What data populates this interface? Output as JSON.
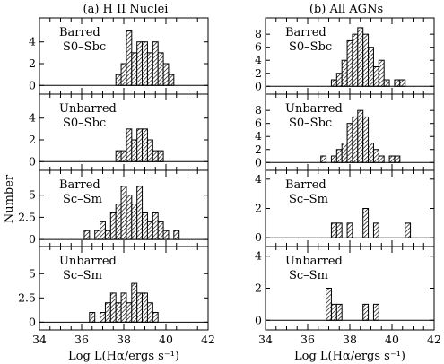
{
  "chart_data": [
    {
      "type": "bar",
      "title": "(a) H II Nuclei",
      "xlabel": "Log L(Hα/ergs s⁻¹)",
      "ylabel": "Number",
      "xlim": [
        34,
        42
      ],
      "bin_width": 0.25,
      "x_ticks": [
        "34",
        "36",
        "38",
        "40",
        "42"
      ],
      "panels": [
        {
          "label": [
            "Barred",
            "S0–Sbc"
          ],
          "ylim": [
            -0.8,
            6.2
          ],
          "y_ticks": [
            0,
            2,
            4
          ],
          "bins": [
            {
              "x": 37.75,
              "count": 1
            },
            {
              "x": 38.0,
              "count": 2
            },
            {
              "x": 38.25,
              "count": 5
            },
            {
              "x": 38.5,
              "count": 3
            },
            {
              "x": 38.75,
              "count": 4
            },
            {
              "x": 39.0,
              "count": 4
            },
            {
              "x": 39.25,
              "count": 3
            },
            {
              "x": 39.5,
              "count": 4
            },
            {
              "x": 39.75,
              "count": 3
            },
            {
              "x": 40.0,
              "count": 2
            },
            {
              "x": 40.25,
              "count": 1
            }
          ]
        },
        {
          "label": [
            "Unbarred",
            "S0–Sbc"
          ],
          "ylim": [
            -0.8,
            6.2
          ],
          "y_ticks": [
            0,
            2,
            4
          ],
          "bins": [
            {
              "x": 37.75,
              "count": 1
            },
            {
              "x": 38.0,
              "count": 1
            },
            {
              "x": 38.25,
              "count": 3
            },
            {
              "x": 38.5,
              "count": 2
            },
            {
              "x": 38.75,
              "count": 3
            },
            {
              "x": 39.0,
              "count": 3
            },
            {
              "x": 39.25,
              "count": 2
            },
            {
              "x": 39.5,
              "count": 1
            },
            {
              "x": 39.75,
              "count": 1
            }
          ]
        },
        {
          "label": [
            "Barred",
            "Sc–Sm"
          ],
          "ylim": [
            -0.8,
            7.8
          ],
          "y_ticks": [
            0,
            2.5,
            5
          ],
          "bins": [
            {
              "x": 36.25,
              "count": 1
            },
            {
              "x": 36.75,
              "count": 1
            },
            {
              "x": 37.0,
              "count": 2
            },
            {
              "x": 37.25,
              "count": 1
            },
            {
              "x": 37.5,
              "count": 3
            },
            {
              "x": 37.75,
              "count": 4
            },
            {
              "x": 38.0,
              "count": 6
            },
            {
              "x": 38.25,
              "count": 5
            },
            {
              "x": 38.5,
              "count": 4
            },
            {
              "x": 38.75,
              "count": 6
            },
            {
              "x": 39.0,
              "count": 3
            },
            {
              "x": 39.25,
              "count": 2
            },
            {
              "x": 39.5,
              "count": 3
            },
            {
              "x": 39.75,
              "count": 2
            },
            {
              "x": 40.0,
              "count": 1
            },
            {
              "x": 40.5,
              "count": 1
            }
          ]
        },
        {
          "label": [
            "Unbarred",
            "Sc–Sm"
          ],
          "ylim": [
            -0.8,
            7.8
          ],
          "y_ticks": [
            0,
            2.5,
            5
          ],
          "bins": [
            {
              "x": 36.5,
              "count": 1
            },
            {
              "x": 37.0,
              "count": 1
            },
            {
              "x": 37.25,
              "count": 2
            },
            {
              "x": 37.5,
              "count": 3
            },
            {
              "x": 37.75,
              "count": 2
            },
            {
              "x": 38.0,
              "count": 3
            },
            {
              "x": 38.25,
              "count": 2
            },
            {
              "x": 38.5,
              "count": 4
            },
            {
              "x": 38.75,
              "count": 3
            },
            {
              "x": 39.0,
              "count": 3
            },
            {
              "x": 39.25,
              "count": 2
            },
            {
              "x": 39.5,
              "count": 1
            }
          ]
        }
      ]
    },
    {
      "type": "bar",
      "title": "(b) All AGNs",
      "xlabel": "Log L(Hα/ergs s⁻¹)",
      "ylabel": "",
      "xlim": [
        34,
        42
      ],
      "bin_width": 0.25,
      "x_ticks": [
        "34",
        "36",
        "38",
        "40",
        "42"
      ],
      "panels": [
        {
          "label": [
            "Barred",
            "S0–Sbc"
          ],
          "ylim": [
            -1.2,
            10.5
          ],
          "y_ticks": [
            0,
            2,
            4,
            6,
            8
          ],
          "bins": [
            {
              "x": 37.25,
              "count": 1
            },
            {
              "x": 37.5,
              "count": 2
            },
            {
              "x": 37.75,
              "count": 4
            },
            {
              "x": 38.0,
              "count": 7
            },
            {
              "x": 38.25,
              "count": 8
            },
            {
              "x": 38.5,
              "count": 9
            },
            {
              "x": 38.75,
              "count": 8
            },
            {
              "x": 39.0,
              "count": 6
            },
            {
              "x": 39.25,
              "count": 3
            },
            {
              "x": 39.5,
              "count": 4
            },
            {
              "x": 39.75,
              "count": 1
            },
            {
              "x": 40.25,
              "count": 1
            },
            {
              "x": 40.5,
              "count": 1
            }
          ]
        },
        {
          "label": [
            "Unbarred",
            "S0–Sbc"
          ],
          "ylim": [
            -1.2,
            10.5
          ],
          "y_ticks": [
            0,
            2,
            4,
            6,
            8
          ],
          "bins": [
            {
              "x": 36.75,
              "count": 1
            },
            {
              "x": 37.25,
              "count": 1
            },
            {
              "x": 37.5,
              "count": 2
            },
            {
              "x": 37.75,
              "count": 3
            },
            {
              "x": 38.0,
              "count": 6
            },
            {
              "x": 38.25,
              "count": 7
            },
            {
              "x": 38.5,
              "count": 8
            },
            {
              "x": 38.75,
              "count": 7
            },
            {
              "x": 39.0,
              "count": 3
            },
            {
              "x": 39.25,
              "count": 2
            },
            {
              "x": 39.5,
              "count": 1
            },
            {
              "x": 40.0,
              "count": 1
            },
            {
              "x": 40.25,
              "count": 1
            }
          ]
        },
        {
          "label": [
            "Barred",
            "Sc–Sm"
          ],
          "ylim": [
            -0.6,
            4.6
          ],
          "y_ticks": [
            0,
            2,
            4
          ],
          "bins": [
            {
              "x": 37.25,
              "count": 1
            },
            {
              "x": 37.5,
              "count": 1
            },
            {
              "x": 38.0,
              "count": 1
            },
            {
              "x": 38.75,
              "count": 2
            },
            {
              "x": 39.25,
              "count": 1
            },
            {
              "x": 40.75,
              "count": 1
            }
          ]
        },
        {
          "label": [
            "Unbarred",
            "Sc–Sm"
          ],
          "ylim": [
            -0.6,
            4.6
          ],
          "y_ticks": [
            0,
            2,
            4
          ],
          "bins": [
            {
              "x": 37.0,
              "count": 2
            },
            {
              "x": 37.25,
              "count": 1
            },
            {
              "x": 37.5,
              "count": 1
            },
            {
              "x": 38.75,
              "count": 1
            },
            {
              "x": 39.25,
              "count": 1
            }
          ]
        }
      ]
    }
  ]
}
